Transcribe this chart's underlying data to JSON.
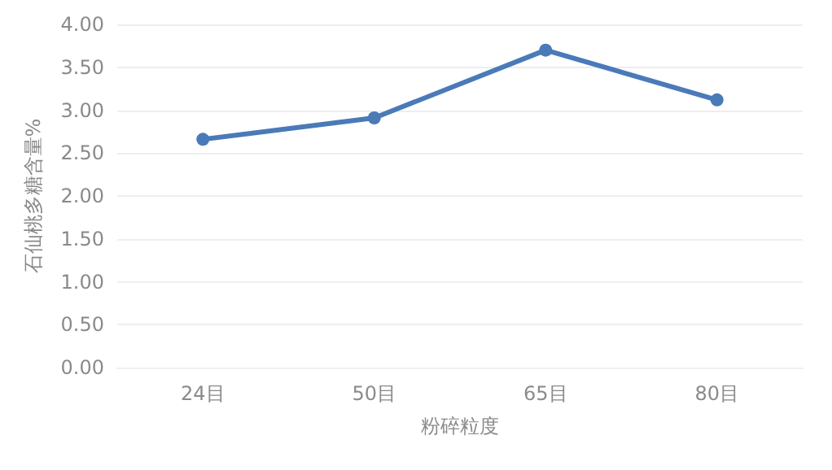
{
  "chart_data": {
    "type": "line",
    "xlabel": "粉碎粒度",
    "ylabel": "石仙桃多糖含量%",
    "categories": [
      "24目",
      "50目",
      "65目",
      "80目"
    ],
    "series": [
      {
        "color": "#4a7ab8",
        "values": [
          2.66,
          2.91,
          3.7,
          3.12
        ]
      }
    ],
    "ylim": [
      0,
      4
    ],
    "yticks": [
      {
        "value": 0,
        "label": "0.00"
      },
      {
        "value": 0.5,
        "label": "0.50"
      },
      {
        "value": 1,
        "label": "1.00"
      },
      {
        "value": 1.5,
        "label": "1.50"
      },
      {
        "value": 2,
        "label": "2.00"
      },
      {
        "value": 2.5,
        "label": "2.50"
      },
      {
        "value": 3,
        "label": "3.00"
      },
      {
        "value": 3.5,
        "label": "3.50"
      },
      {
        "value": 4,
        "label": "4.00"
      }
    ],
    "grid": "y",
    "marker": "circle",
    "line_style": "solid"
  }
}
